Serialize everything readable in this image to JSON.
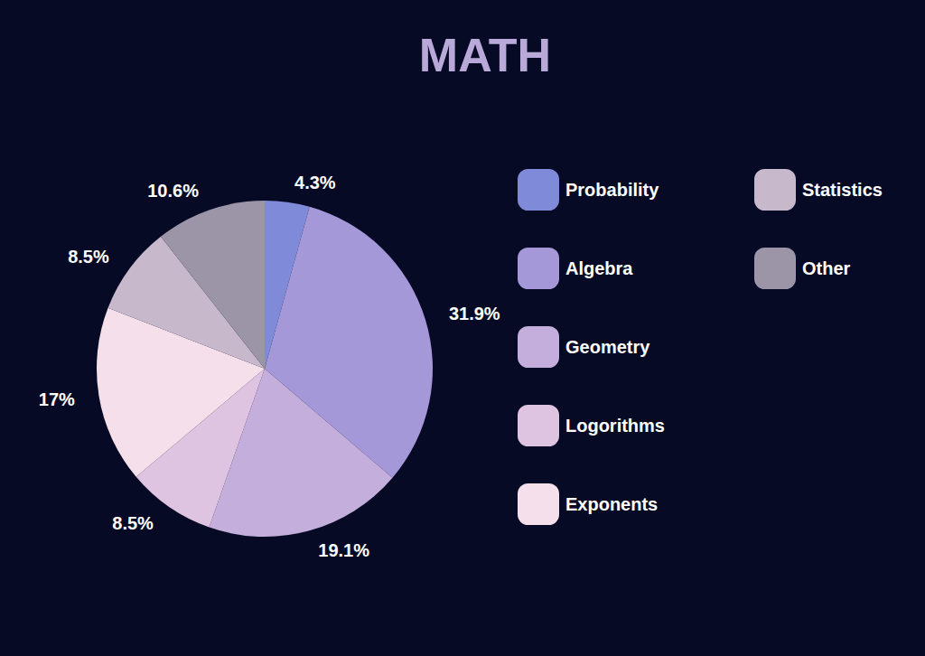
{
  "chart_data": {
    "type": "pie",
    "title": "MATH",
    "categories": [
      "Probability",
      "Algebra",
      "Geometry",
      "Logorithms",
      "Exponents",
      "Statistics",
      "Other"
    ],
    "values": [
      4.3,
      31.9,
      19.1,
      8.5,
      17,
      8.5,
      10.6
    ],
    "value_labels": [
      "4.3%",
      "31.9%",
      "19.1%",
      "8.5%",
      "17%",
      "8.5%",
      "10.6%"
    ],
    "colors": [
      "#7f8ad8",
      "#a598d8",
      "#c4aedc",
      "#dfc4e2",
      "#f5dfea",
      "#c8b8cc",
      "#9c95a8"
    ],
    "data_labels": true,
    "legend": "right"
  }
}
